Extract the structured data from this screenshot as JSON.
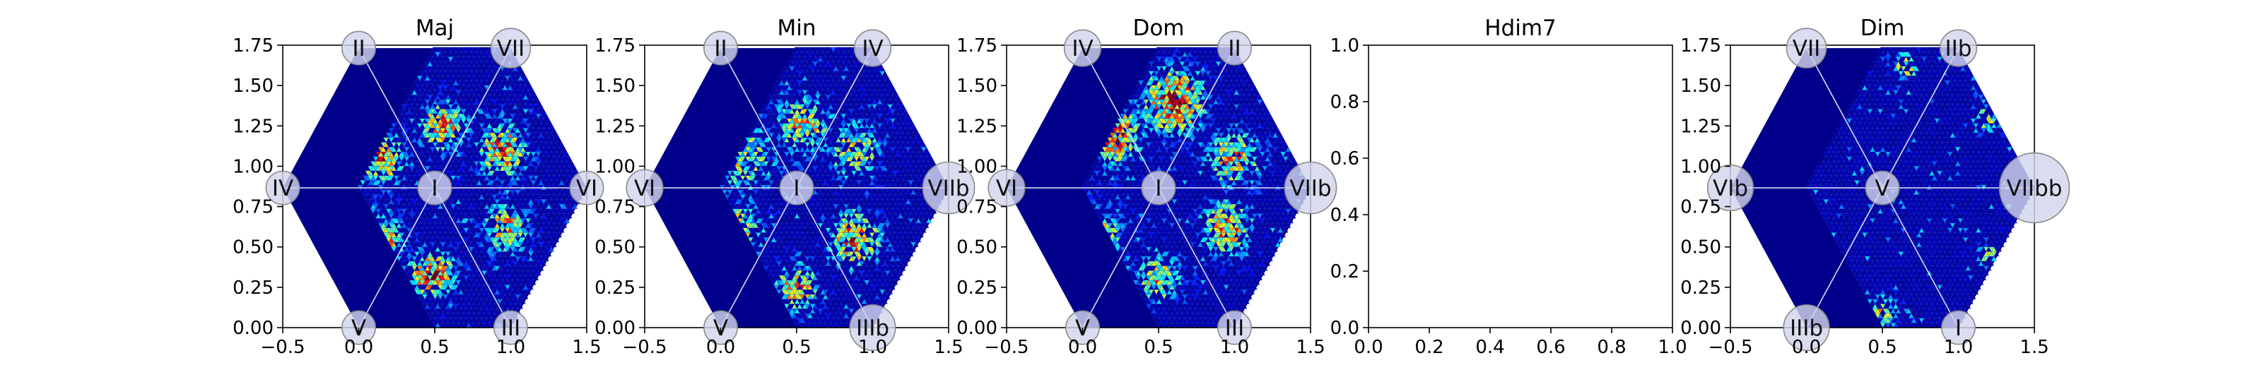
{
  "figure": {
    "background": "#ffffff",
    "colormap": "jet",
    "hex_fill_color": "#00008b",
    "tile_line_color": "#2c3fc4",
    "divider_color": "#d8dcf5",
    "node_fill": "#d2d4ec",
    "node_stroke": "#8a8a8a"
  },
  "chart_data": [
    {
      "type": "heatmap",
      "title": "Maj",
      "xlim": [
        -0.5,
        1.5
      ],
      "ylim": [
        0.0,
        1.75
      ],
      "xticks": [
        "−0.5",
        "0.0",
        "0.5",
        "1.0",
        "1.5"
      ],
      "yticks": [
        "0.00",
        "0.25",
        "0.50",
        "0.75",
        "1.00",
        "1.25",
        "1.50",
        "1.75"
      ],
      "has_hexagon": true,
      "nodes": [
        {
          "label": "I",
          "x": 0.5,
          "y": 0.866,
          "r": 0.11
        },
        {
          "label": "II",
          "x": 0.0,
          "y": 1.732,
          "r": 0.11
        },
        {
          "label": "VII",
          "x": 1.0,
          "y": 1.732,
          "r": 0.13
        },
        {
          "label": "IV",
          "x": -0.5,
          "y": 0.866,
          "r": 0.11
        },
        {
          "label": "VI",
          "x": 1.5,
          "y": 0.866,
          "r": 0.11
        },
        {
          "label": "V",
          "x": 0.0,
          "y": 0.0,
          "r": 0.11
        },
        {
          "label": "III",
          "x": 1.0,
          "y": 0.0,
          "r": 0.11
        }
      ],
      "hotspots": [
        {
          "x": 0.14,
          "y": 1.05,
          "intensity": 0.85,
          "spread": 0.16,
          "density": 0.55
        },
        {
          "x": 0.55,
          "y": 1.25,
          "intensity": 0.8,
          "spread": 0.15,
          "density": 0.5
        },
        {
          "x": 0.95,
          "y": 1.1,
          "intensity": 0.85,
          "spread": 0.16,
          "density": 0.55
        },
        {
          "x": 0.12,
          "y": 0.55,
          "intensity": 0.9,
          "spread": 0.16,
          "density": 0.55
        },
        {
          "x": 0.48,
          "y": 0.33,
          "intensity": 0.95,
          "spread": 0.14,
          "density": 0.55
        },
        {
          "x": 0.97,
          "y": 0.62,
          "intensity": 0.7,
          "spread": 0.15,
          "density": 0.5
        }
      ]
    },
    {
      "type": "heatmap",
      "title": "Min",
      "xlim": [
        -0.5,
        1.5
      ],
      "ylim": [
        0.0,
        1.75
      ],
      "xticks": [
        "−0.5",
        "0.0",
        "0.5",
        "1.0",
        "1.5"
      ],
      "yticks": [
        "0.00",
        "0.25",
        "0.50",
        "0.75",
        "1.00",
        "1.25",
        "1.50",
        "1.75"
      ],
      "has_hexagon": true,
      "nodes": [
        {
          "label": "I",
          "x": 0.5,
          "y": 0.866,
          "r": 0.11
        },
        {
          "label": "II",
          "x": 0.0,
          "y": 1.732,
          "r": 0.11
        },
        {
          "label": "IV",
          "x": 1.0,
          "y": 1.732,
          "r": 0.12
        },
        {
          "label": "VI",
          "x": -0.5,
          "y": 0.866,
          "r": 0.12
        },
        {
          "label": "VIIb",
          "x": 1.5,
          "y": 0.866,
          "r": 0.17
        },
        {
          "label": "V",
          "x": 0.0,
          "y": 0.0,
          "r": 0.11
        },
        {
          "label": "IIIb",
          "x": 1.0,
          "y": 0.0,
          "r": 0.15
        }
      ],
      "hotspots": [
        {
          "x": 0.15,
          "y": 1.05,
          "intensity": 0.55,
          "spread": 0.22,
          "density": 0.35
        },
        {
          "x": 0.55,
          "y": 1.25,
          "intensity": 0.7,
          "spread": 0.18,
          "density": 0.4
        },
        {
          "x": 0.88,
          "y": 1.1,
          "intensity": 0.6,
          "spread": 0.18,
          "density": 0.35
        },
        {
          "x": 0.1,
          "y": 0.6,
          "intensity": 0.65,
          "spread": 0.18,
          "density": 0.35
        },
        {
          "x": 0.88,
          "y": 0.55,
          "intensity": 0.85,
          "spread": 0.17,
          "density": 0.45
        },
        {
          "x": 0.5,
          "y": 0.25,
          "intensity": 0.8,
          "spread": 0.14,
          "density": 0.4
        }
      ]
    },
    {
      "type": "heatmap",
      "title": "Dom",
      "xlim": [
        -0.5,
        1.5
      ],
      "ylim": [
        0.0,
        1.75
      ],
      "xticks": [
        "−0.5",
        "0.0",
        "0.5",
        "1.0",
        "1.5"
      ],
      "yticks": [
        "0.00",
        "0.25",
        "0.50",
        "0.75",
        "1.00",
        "1.25",
        "1.50",
        "1.75"
      ],
      "has_hexagon": true,
      "nodes": [
        {
          "label": "I",
          "x": 0.5,
          "y": 0.866,
          "r": 0.11
        },
        {
          "label": "IV",
          "x": 0.0,
          "y": 1.732,
          "r": 0.12
        },
        {
          "label": "II",
          "x": 1.0,
          "y": 1.732,
          "r": 0.11
        },
        {
          "label": "VI",
          "x": -0.5,
          "y": 0.866,
          "r": 0.12
        },
        {
          "label": "VIIb",
          "x": 1.5,
          "y": 0.866,
          "r": 0.17
        },
        {
          "label": "V",
          "x": 0.0,
          "y": 0.0,
          "r": 0.11
        },
        {
          "label": "III",
          "x": 1.0,
          "y": 0.0,
          "r": 0.11
        }
      ],
      "hotspots": [
        {
          "x": 0.2,
          "y": 1.2,
          "intensity": 0.9,
          "spread": 0.18,
          "density": 0.6
        },
        {
          "x": 0.6,
          "y": 1.4,
          "intensity": 0.95,
          "spread": 0.2,
          "density": 0.65
        },
        {
          "x": 1.0,
          "y": 1.05,
          "intensity": 0.75,
          "spread": 0.17,
          "density": 0.5
        },
        {
          "x": 0.1,
          "y": 0.55,
          "intensity": 0.7,
          "spread": 0.18,
          "density": 0.45
        },
        {
          "x": 0.95,
          "y": 0.62,
          "intensity": 0.8,
          "spread": 0.16,
          "density": 0.5
        },
        {
          "x": 0.5,
          "y": 0.3,
          "intensity": 0.65,
          "spread": 0.15,
          "density": 0.4
        }
      ]
    },
    {
      "type": "heatmap",
      "title": "Hdim7",
      "xlim": [
        0.0,
        1.0
      ],
      "ylim": [
        0.0,
        1.0
      ],
      "xticks": [
        "0.0",
        "0.2",
        "0.4",
        "0.6",
        "0.8",
        "1.0"
      ],
      "yticks": [
        "0.0",
        "0.2",
        "0.4",
        "0.6",
        "0.8",
        "1.0"
      ],
      "has_hexagon": false,
      "nodes": [],
      "hotspots": []
    },
    {
      "type": "heatmap",
      "title": "Dim",
      "xlim": [
        -0.5,
        1.5
      ],
      "ylim": [
        0.0,
        1.75
      ],
      "xticks": [
        "−0.5",
        "0.0",
        "0.5",
        "1.0",
        "1.5"
      ],
      "yticks": [
        "0.00",
        "0.25",
        "0.50",
        "0.75",
        "1.00",
        "1.25",
        "1.50",
        "1.75"
      ],
      "has_hexagon": true,
      "nodes": [
        {
          "label": "V",
          "x": 0.5,
          "y": 0.866,
          "r": 0.11
        },
        {
          "label": "VII",
          "x": 0.0,
          "y": 1.732,
          "r": 0.13
        },
        {
          "label": "IIb",
          "x": 1.0,
          "y": 1.732,
          "r": 0.12
        },
        {
          "label": "VIb",
          "x": -0.5,
          "y": 0.866,
          "r": 0.15
        },
        {
          "label": "VIIbb",
          "x": 1.5,
          "y": 0.866,
          "r": 0.23
        },
        {
          "label": "IIIb",
          "x": 0.0,
          "y": 0.0,
          "r": 0.15
        },
        {
          "label": "I",
          "x": 1.0,
          "y": 0.0,
          "r": 0.11
        }
      ],
      "hotspots": [
        {
          "x": 0.25,
          "y": 1.65,
          "intensity": 0.6,
          "spread": 0.1,
          "density": 0.3
        },
        {
          "x": 0.65,
          "y": 1.62,
          "intensity": 0.7,
          "spread": 0.08,
          "density": 0.3
        },
        {
          "x": 1.2,
          "y": 1.3,
          "intensity": 0.6,
          "spread": 0.1,
          "density": 0.3
        },
        {
          "x": -0.25,
          "y": 1.3,
          "intensity": 0.5,
          "spread": 0.07,
          "density": 0.3
        },
        {
          "x": -0.28,
          "y": 0.42,
          "intensity": 0.55,
          "spread": 0.08,
          "density": 0.3
        },
        {
          "x": 0.5,
          "y": 0.1,
          "intensity": 0.6,
          "spread": 0.1,
          "density": 0.3
        },
        {
          "x": 1.2,
          "y": 0.45,
          "intensity": 0.5,
          "spread": 0.08,
          "density": 0.3
        }
      ]
    }
  ]
}
